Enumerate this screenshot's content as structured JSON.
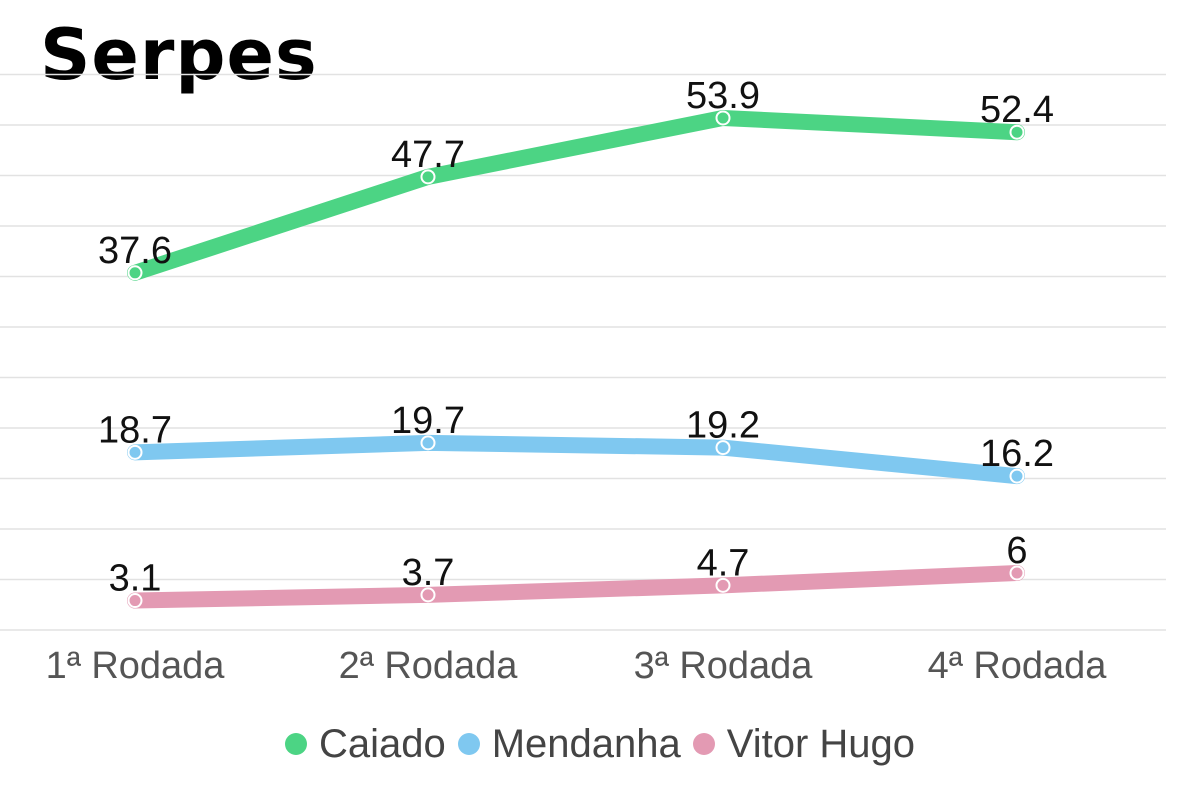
{
  "title": "Serpes",
  "chart_data": {
    "type": "line",
    "categories": [
      "1ª Rodada",
      "2ª Rodada",
      "3ª Rodada",
      "4ª Rodada"
    ],
    "series": [
      {
        "name": "Caiado",
        "values": [
          37.6,
          47.7,
          53.9,
          52.4
        ],
        "color": "#4cd484"
      },
      {
        "name": "Mendanha",
        "values": [
          18.7,
          19.7,
          19.2,
          16.2
        ],
        "color": "#7fc8f0"
      },
      {
        "name": "Vitor Hugo",
        "values": [
          3.1,
          3.7,
          4.7,
          6
        ],
        "color": "#e39ab3"
      }
    ],
    "ylim": [
      0,
      60
    ],
    "grid": true,
    "legend_position": "bottom"
  }
}
